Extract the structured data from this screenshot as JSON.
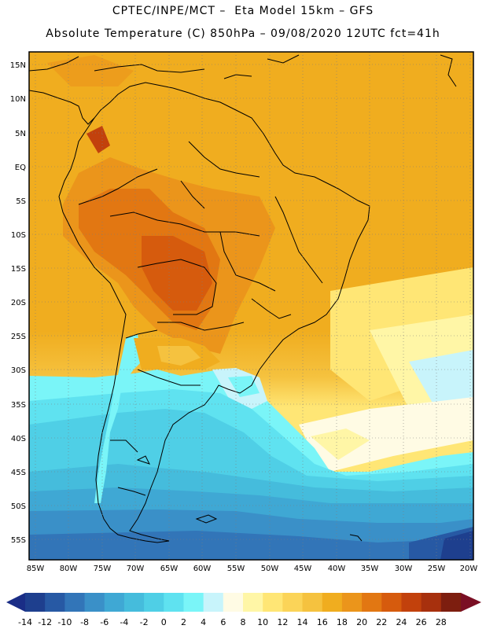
{
  "header": {
    "line1": "CPTEC/INPE/MCT –  Eta Model 15km – GFS",
    "line2": "Absolute Temperature (C) 850hPa – 09/08/2020 12UTC fct=41h"
  },
  "map": {
    "lat_labels": [
      "15N",
      "10N",
      "5N",
      "EQ",
      "5S",
      "10S",
      "15S",
      "20S",
      "25S",
      "30S",
      "35S",
      "40S",
      "45S",
      "50S",
      "55S"
    ],
    "lon_labels": [
      "85W",
      "80W",
      "75W",
      "70W",
      "65W",
      "60W",
      "55W",
      "50W",
      "45W",
      "40W",
      "35W",
      "30W",
      "25W",
      "20W"
    ]
  },
  "legend": {
    "labels": [
      "-14",
      "-12",
      "-10",
      "-8",
      "-6",
      "-4",
      "-2",
      "0",
      "2",
      "4",
      "6",
      "8",
      "10",
      "12",
      "14",
      "16",
      "18",
      "20",
      "22",
      "24",
      "26",
      "28"
    ],
    "colors": [
      "#1e3f8e",
      "#2759a4",
      "#3275b8",
      "#3a90c8",
      "#3fa8d4",
      "#45bcdc",
      "#4fcfe6",
      "#5fe2f0",
      "#7af5f8",
      "#c8f4fb",
      "#fffbe4",
      "#fff6a6",
      "#ffe675",
      "#fbd458",
      "#f5c23f",
      "#f0ad1f",
      "#eb951b",
      "#e27712",
      "#d65b0d",
      "#c2410c",
      "#a7300d",
      "#7d1e0f"
    ],
    "under_color": "#1a2d86",
    "over_color": "#7a0f24"
  }
}
